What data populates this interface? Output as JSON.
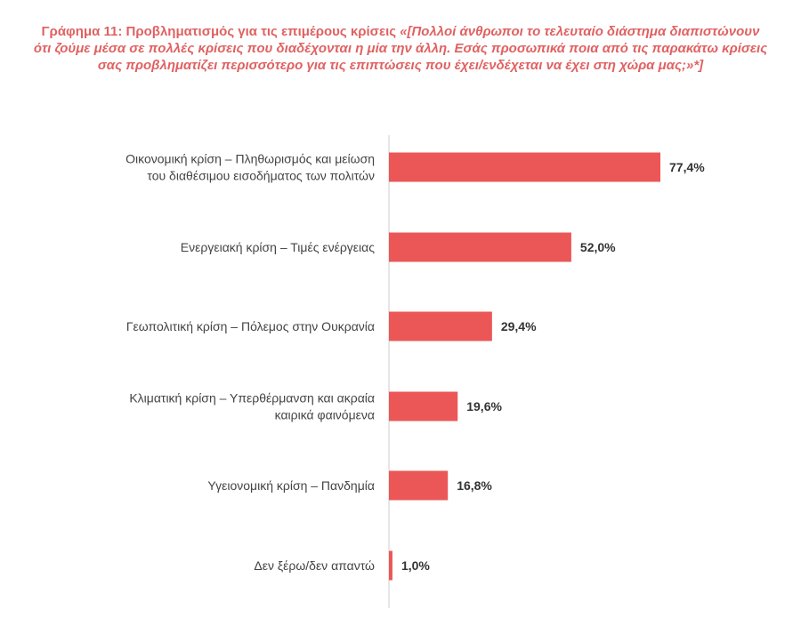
{
  "chart_data": {
    "type": "bar",
    "orientation": "horizontal",
    "title_lead": "Γράφημα 11: Προβληματισμός για τις επιμέρους κρίσεις ",
    "title_question": "«[Πολλοί άνθρωποι το τελευταίο διάστημα διαπιστώνουν ότι ζούμε μέσα σε πολλές κρίσεις που διαδέχονται η μία την άλλη. Εσάς προσωπικά ποια από τις παρακάτω κρίσεις σας προβληματίζει περισσότερο για τις επιπτώσεις που έχει/ενδέχεται να έχει στη χώρα μας;»*]",
    "categories": [
      [
        "Οικονομική κρίση – Πληθωρισμός και μείωση",
        "του διαθέσιμου εισοδήματος των πολιτών"
      ],
      [
        "Ενεργειακή κρίση – Τιμές ενέργειας"
      ],
      [
        "Γεωπολιτική κρίση – Πόλεμος στην Ουκρανία"
      ],
      [
        "Κλιματική κρίση – Υπερθέρμανση και ακραία",
        "καιρικά φαινόμενα"
      ],
      [
        "Υγειονομική κρίση – Πανδημία"
      ],
      [
        "Δεν ξέρω/δεν απαντώ"
      ]
    ],
    "values": [
      77.4,
      52.0,
      29.4,
      19.6,
      16.8,
      1.0
    ],
    "value_labels": [
      "77,4%",
      "52,0%",
      "29,4%",
      "19,6%",
      "16,8%",
      "1,0%"
    ],
    "unit": "%",
    "xlim": [
      0,
      100
    ],
    "grid": false,
    "legend": "none",
    "bar_color": "#eb5757",
    "axis_color": "#cccccc"
  }
}
